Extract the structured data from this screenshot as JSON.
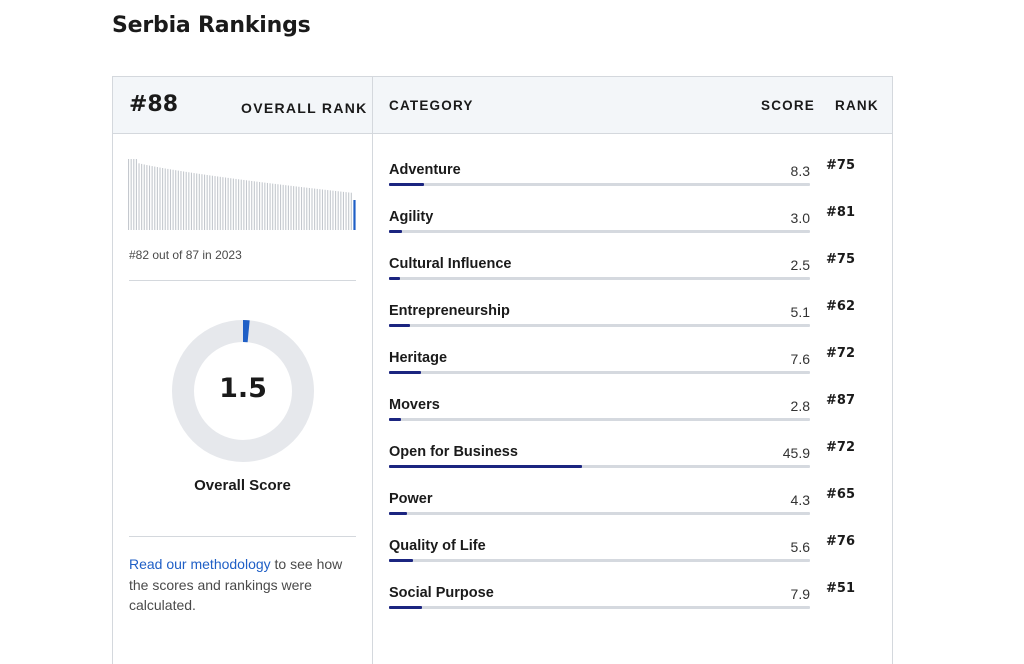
{
  "page_title": "Serbia Rankings",
  "overall": {
    "rank": "#88",
    "rank_label": "OVERALL RANK",
    "history_text": "#82 out of 87 in 2023",
    "score": "1.5",
    "score_max": 100,
    "score_label": "Overall Score",
    "highlight_color": "#1f5fc6"
  },
  "table_header": {
    "category": "CATEGORY",
    "score": "SCORE",
    "rank": "RANK"
  },
  "categories": [
    {
      "name": "Adventure",
      "score": "8.3",
      "rank": "#75",
      "value": 8.3
    },
    {
      "name": "Agility",
      "score": "3.0",
      "rank": "#81",
      "value": 3.0
    },
    {
      "name": "Cultural Influence",
      "score": "2.5",
      "rank": "#75",
      "value": 2.5
    },
    {
      "name": "Entrepreneurship",
      "score": "5.1",
      "rank": "#62",
      "value": 5.1
    },
    {
      "name": "Heritage",
      "score": "7.6",
      "rank": "#72",
      "value": 7.6
    },
    {
      "name": "Movers",
      "score": "2.8",
      "rank": "#87",
      "value": 2.8
    },
    {
      "name": "Open for Business",
      "score": "45.9",
      "rank": "#72",
      "value": 45.9
    },
    {
      "name": "Power",
      "score": "4.3",
      "rank": "#65",
      "value": 4.3
    },
    {
      "name": "Quality of Life",
      "score": "5.6",
      "rank": "#76",
      "value": 5.6
    },
    {
      "name": "Social Purpose",
      "score": "7.9",
      "rank": "#51",
      "value": 7.9
    }
  ],
  "score_bar_max": 100,
  "bar_color": "#1b2580",
  "methodology": {
    "link_text": "Read our methodology",
    "rest_text": " to see how the scores and rankings were calculated."
  }
}
